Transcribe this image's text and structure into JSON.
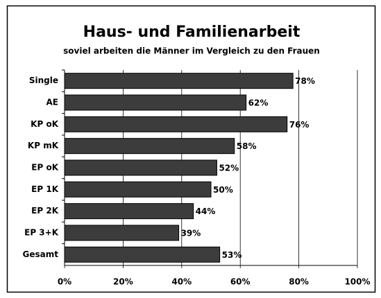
{
  "chart_data": {
    "type": "bar",
    "orientation": "horizontal",
    "title": "Haus- und Familienarbeit",
    "subtitle": "soviel arbeiten die Männer im Vergleich zu den Frauen",
    "categories": [
      "Single",
      "AE",
      "KP oK",
      "KP mK",
      "EP oK",
      "EP 1K",
      "EP 2K",
      "EP 3+K",
      "Gesamt"
    ],
    "values": [
      78,
      62,
      76,
      58,
      52,
      50,
      44,
      39,
      53
    ],
    "value_labels": [
      "78%",
      "62%",
      "76%",
      "58%",
      "52%",
      "50%",
      "44%",
      "39%",
      "53%"
    ],
    "color": "#3c3c3c",
    "xlim": [
      0,
      100
    ],
    "xticks": [
      {
        "value": 0,
        "label": "0%"
      },
      {
        "value": 20,
        "label": "20%"
      },
      {
        "value": 40,
        "label": "40%"
      },
      {
        "value": 60,
        "label": "60%"
      },
      {
        "value": 80,
        "label": "80%"
      },
      {
        "value": 100,
        "label": "100%"
      }
    ],
    "grid": true
  }
}
